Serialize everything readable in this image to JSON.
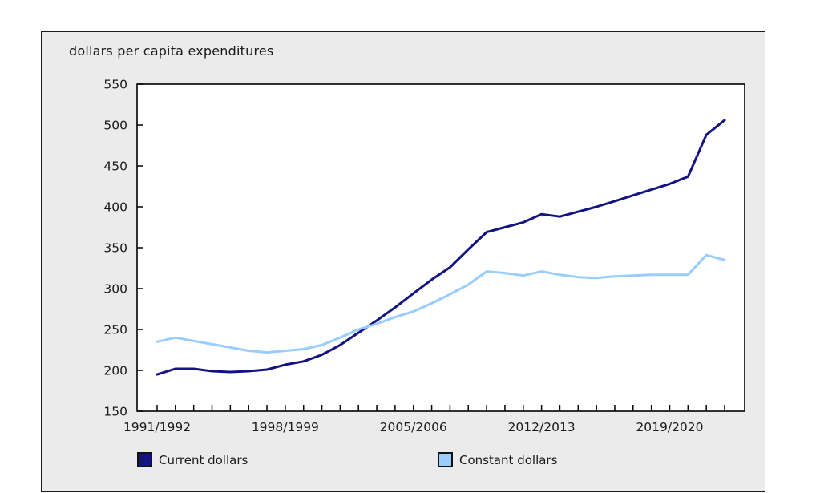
{
  "panel": {
    "background": "#ebebeb",
    "border_color": "#1a1a1a",
    "plot_background": "#ffffff"
  },
  "legend": {
    "items": [
      {
        "label": "Current dollars",
        "color": "#131384"
      },
      {
        "label": "Constant dollars",
        "color": "#99ccff"
      }
    ]
  },
  "chart_data": {
    "type": "line",
    "title": "dollars per capita expenditures",
    "xlabel": "",
    "ylabel": "",
    "ylim": [
      150,
      550
    ],
    "y_ticks": [
      150,
      200,
      250,
      300,
      350,
      400,
      450,
      500,
      550
    ],
    "grid": false,
    "legend_position": "bottom",
    "x_labeled_tick_indices": [
      0,
      7,
      14,
      21,
      28
    ],
    "x_labeled_tick_labels": [
      "1991/1992",
      "1998/1999",
      "2005/2006",
      "2012/2013",
      "2019/2020"
    ],
    "categories": [
      "1991/1992",
      "1992/1993",
      "1993/1994",
      "1994/1995",
      "1995/1996",
      "1996/1997",
      "1997/1998",
      "1998/1999",
      "1999/2000",
      "2000/2001",
      "2001/2002",
      "2002/2003",
      "2003/2004",
      "2004/2005",
      "2005/2006",
      "2006/2007",
      "2007/2008",
      "2008/2009",
      "2009/2010",
      "2010/2011",
      "2011/2012",
      "2012/2013",
      "2013/2014",
      "2014/2015",
      "2015/2016",
      "2016/2017",
      "2017/2018",
      "2018/2019",
      "2019/2020",
      "2020/2021",
      "2021/2022",
      "2022/2023"
    ],
    "series": [
      {
        "name": "Current dollars",
        "color": "#131384",
        "values": [
          195,
          202,
          202,
          199,
          198,
          199,
          201,
          207,
          211,
          219,
          231,
          246,
          261,
          277,
          294,
          311,
          326,
          348,
          369,
          375,
          381,
          391,
          388,
          394,
          400,
          407,
          414,
          421,
          428,
          437,
          488,
          506
        ]
      },
      {
        "name": "Constant dollars",
        "color": "#99ccff",
        "values": [
          235,
          240,
          236,
          232,
          228,
          224,
          222,
          224,
          226,
          231,
          240,
          250,
          257,
          265,
          272,
          282,
          293,
          305,
          321,
          319,
          316,
          321,
          317,
          314,
          313,
          315,
          316,
          317,
          317,
          317,
          341,
          335
        ]
      }
    ]
  },
  "axis": {
    "tick_color": "#000000",
    "label_color": "#1a1a1a"
  }
}
